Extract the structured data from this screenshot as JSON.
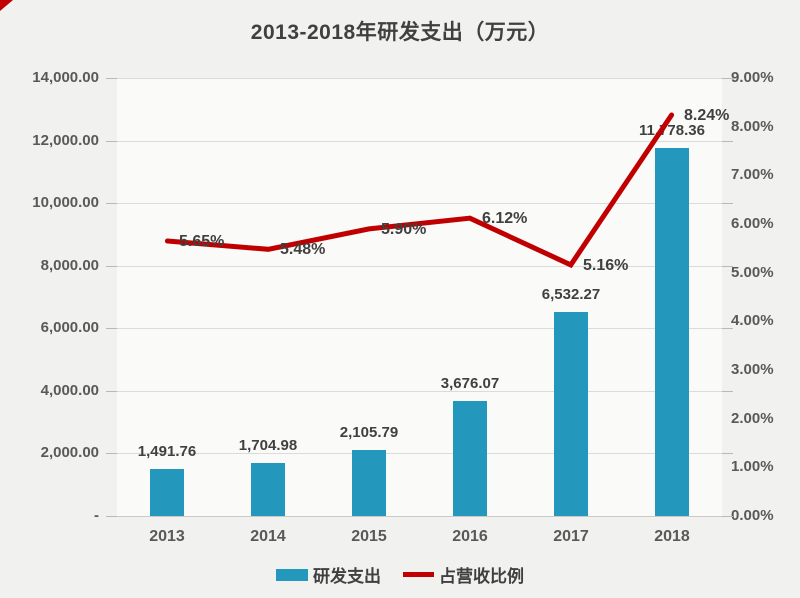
{
  "title": "2013-2018年研发支出（万元）",
  "colors": {
    "bar": "#2397bc",
    "line": "#c00000",
    "label_text": "#404040",
    "axis_text": "#595959",
    "gridline": "#dbdbdb",
    "background": "#f1f1f0",
    "corner_mark": "#c00000"
  },
  "chart_data": {
    "type": "bar",
    "title": "2013-2018年研发支出（万元）",
    "categories": [
      "2013",
      "2014",
      "2015",
      "2016",
      "2017",
      "2018"
    ],
    "series": [
      {
        "name": "研发支出",
        "type": "bar",
        "axis": "left",
        "values": [
          1491.76,
          1704.98,
          2105.79,
          3676.07,
          6532.27,
          11778.36
        ],
        "labels": [
          "1,491.76",
          "1,704.98",
          "2,105.79",
          "3,676.07",
          "6,532.27",
          "11,778.36"
        ]
      },
      {
        "name": "占营收比例",
        "type": "line",
        "axis": "right",
        "values": [
          5.65,
          5.48,
          5.9,
          6.12,
          5.16,
          8.24
        ],
        "labels": [
          "5.65%",
          "5.48%",
          "5.90%",
          "6.12%",
          "5.16%",
          "8.24%"
        ]
      }
    ],
    "left_axis": {
      "min": 0,
      "max": 14000,
      "step": 2000,
      "tick_labels_top_down": [
        "14,000.00",
        "12,000.00",
        "10,000.00",
        "8,000.00",
        "6,000.00",
        "4,000.00",
        "2,000.00",
        "-"
      ]
    },
    "right_axis": {
      "min": 0,
      "max": 9,
      "step": 1,
      "tick_labels_top_down": [
        "9.00%",
        "8.00%",
        "7.00%",
        "6.00%",
        "5.00%",
        "4.00%",
        "3.00%",
        "2.00%",
        "1.00%",
        "0.00%"
      ]
    },
    "legend": [
      "研发支出",
      "占营收比例"
    ],
    "legend_position": "bottom",
    "grid": true
  }
}
